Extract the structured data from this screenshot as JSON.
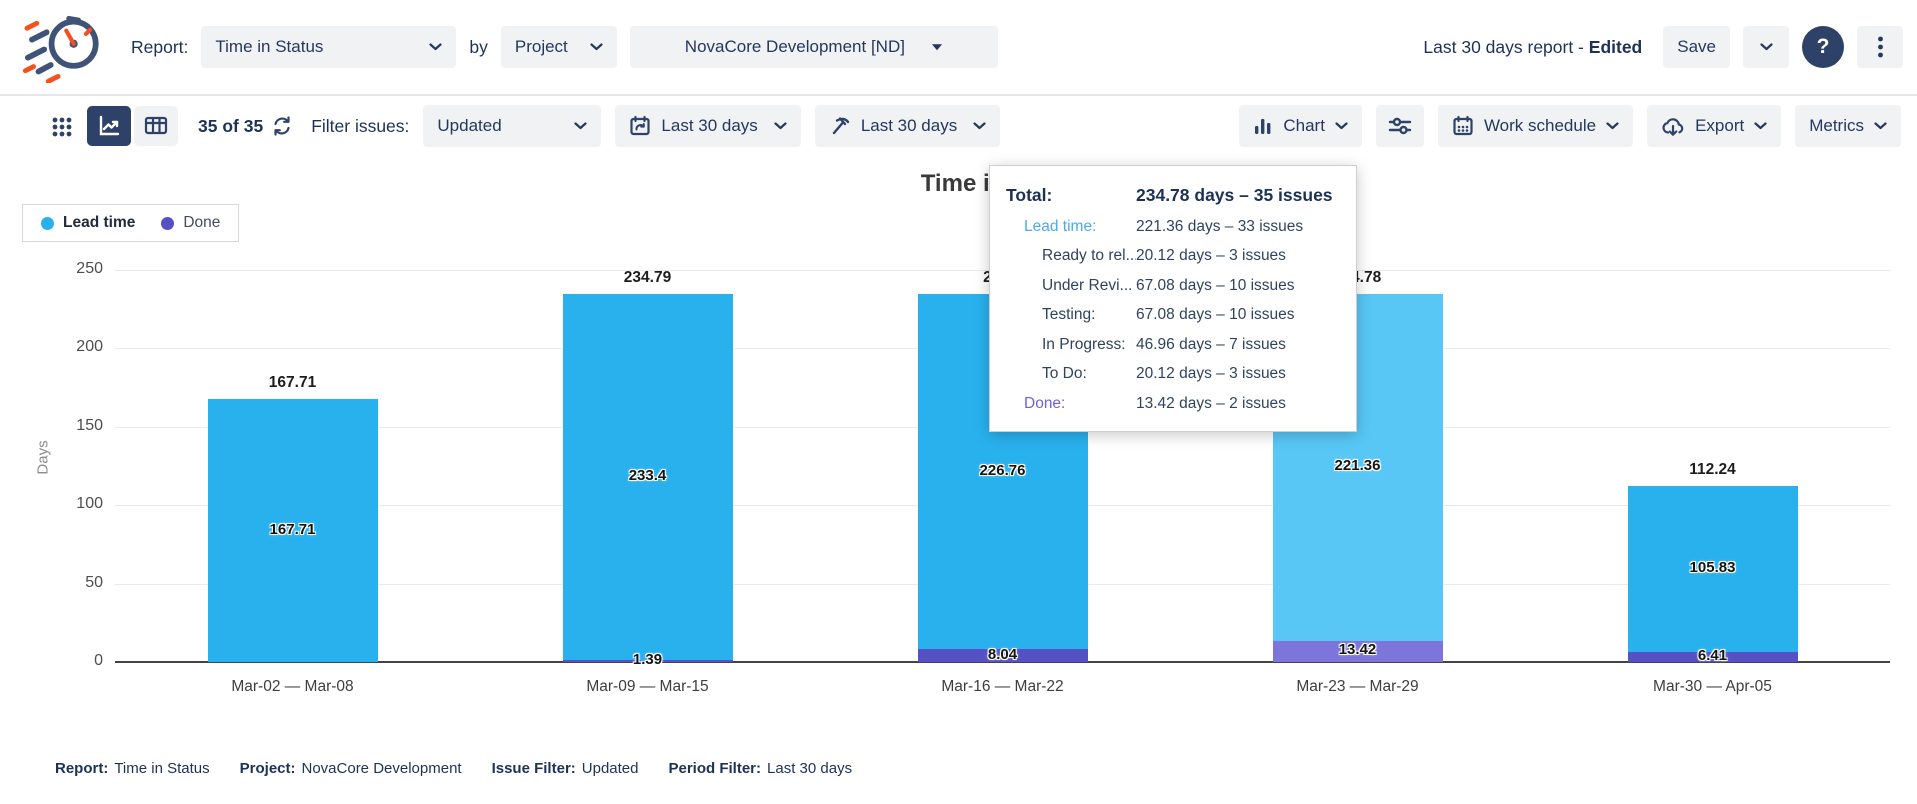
{
  "header": {
    "report_label": "Report:",
    "report_select": "Time in Status",
    "by_label": "by",
    "group_select": "Project",
    "project_select": "NovaCore Development [ND]",
    "report_name": "Last 30 days report - ",
    "report_state": "Edited",
    "save_label": "Save"
  },
  "toolbar": {
    "count": "35 of 35",
    "filter_label": "Filter issues:",
    "issue_filter": "Updated",
    "period_filter": "Last 30 days",
    "time_filter": "Last 30 days",
    "chart_label": "Chart",
    "work_schedule_label": "Work schedule",
    "export_label": "Export",
    "metrics_label": "Metrics"
  },
  "chart_data": {
    "type": "bar",
    "stacked": true,
    "title": "Time in Status",
    "ylabel": "Days",
    "ylim": [
      0,
      250
    ],
    "yticks": [
      0,
      50,
      100,
      150,
      200,
      250
    ],
    "grid": true,
    "legend_position": "top-left",
    "categories": [
      "Mar-02 — Mar-08",
      "Mar-09 — Mar-15",
      "Mar-16 — Mar-22",
      "Mar-23 — Mar-29",
      "Mar-30 — Apr-05"
    ],
    "series": [
      {
        "name": "Lead time",
        "color": "#29b1ee",
        "hover_color": "#58c7f6",
        "values": [
          167.71,
          233.4,
          226.76,
          221.36,
          105.83
        ],
        "labels": [
          "167.71",
          "233.4",
          "226.76",
          "221.36",
          "105.83"
        ]
      },
      {
        "name": "Done",
        "color": "#5551c5",
        "hover_color": "#7e75da",
        "values": [
          0,
          1.39,
          8.04,
          13.42,
          6.41
        ],
        "labels": [
          "",
          "1.39",
          "8.04",
          "13.42",
          "6.41"
        ]
      }
    ],
    "totals": [
      "167.71",
      "234.79",
      "234.8",
      "234.78",
      "112.24"
    ],
    "hovered_index": 3
  },
  "tooltip": {
    "rows": [
      {
        "label": "Total:",
        "value": "234.78 days – 35 issues",
        "style": "total"
      },
      {
        "label": "Lead time:",
        "value": "221.36 days – 33 issues",
        "style": "lead"
      },
      {
        "label": "Ready to rel...",
        "value": "20.12 days – 3 issues",
        "style": "child"
      },
      {
        "label": "Under Revi...",
        "value": "67.08 days – 10 issues",
        "style": "child"
      },
      {
        "label": "Testing:",
        "value": "67.08 days – 10 issues",
        "style": "child"
      },
      {
        "label": "In Progress:",
        "value": "46.96 days – 7 issues",
        "style": "child"
      },
      {
        "label": "To Do:",
        "value": "20.12 days – 3 issues",
        "style": "child"
      },
      {
        "label": "Done:",
        "value": "13.42 days – 2 issues",
        "style": "done"
      }
    ]
  },
  "footer": {
    "pairs": [
      {
        "label": "Report:",
        "value": "Time in Status"
      },
      {
        "label": "Project:",
        "value": "NovaCore Development"
      },
      {
        "label": "Issue Filter:",
        "value": "Updated"
      },
      {
        "label": "Period Filter:",
        "value": "Last 30 days"
      }
    ]
  },
  "icons": {
    "app-logo": "speed-stopwatch",
    "view-grid-icon": "3x3-dots",
    "view-chart-icon": "line-chart-arrow",
    "view-board-icon": "column-board",
    "refresh-icon": "circular-arrows",
    "calendar-refresh-icon": "calendar-sync",
    "time-filter-icon": "pickaxe",
    "chart-type-icon": "bar-chart",
    "settings-icon": "sliders",
    "work-schedule-icon": "calendar-grid",
    "export-icon": "cloud-download",
    "chevron-down-icon": "chevron-v",
    "help-icon": "question-mark",
    "more-icon": "kebab-dots"
  },
  "colors": {
    "accent_navy": "#2e4269",
    "pill_bg": "#f1f2f4",
    "lead_time_blue": "#29b1ee",
    "lead_time_blue_hover": "#58c7f6",
    "done_purple": "#5551c5",
    "done_purple_hover": "#7e75da",
    "tooltip_lead_label": "#4aa9ed",
    "tooltip_done_label": "#7064d2"
  }
}
